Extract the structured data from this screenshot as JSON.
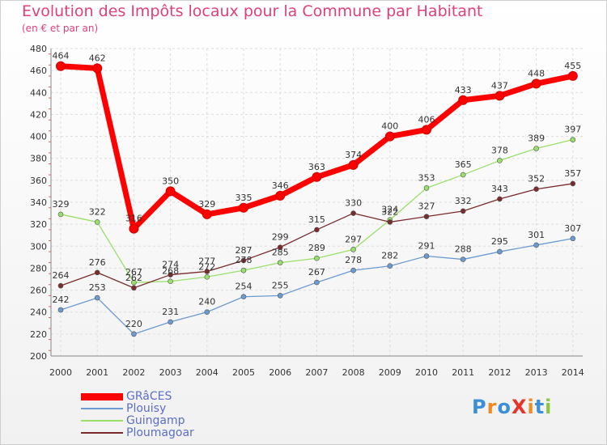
{
  "title": "Evolution des Impôts locaux pour la Commune par Habitant",
  "subtitle": "(en € et par an)",
  "logo_text": "ProXiti",
  "chart_data": {
    "type": "line",
    "title": "Evolution des Impôts locaux pour la Commune par Habitant",
    "subtitle": "(en € et par an)",
    "xlabel": "",
    "ylabel": "",
    "ylim": [
      200,
      480
    ],
    "ytick_step": 20,
    "grid": true,
    "legend_position": "bottom-left",
    "x": [
      2000,
      2001,
      2002,
      2003,
      2004,
      2005,
      2006,
      2007,
      2008,
      2009,
      2010,
      2011,
      2012,
      2013,
      2014
    ],
    "series": [
      {
        "name": "GRâCES",
        "color": "#ff0000",
        "values": [
          464,
          462,
          316,
          350,
          329,
          335,
          346,
          363,
          374,
          400,
          406,
          433,
          437,
          448,
          455
        ]
      },
      {
        "name": "Plouisy",
        "color": "#6b9bd2",
        "values": [
          242,
          253,
          220,
          231,
          240,
          254,
          255,
          267,
          278,
          282,
          291,
          288,
          295,
          301,
          307
        ]
      },
      {
        "name": "Guingamp",
        "color": "#99e06a",
        "values": [
          329,
          322,
          267,
          268,
          272,
          278,
          285,
          289,
          297,
          324,
          353,
          365,
          378,
          389,
          397
        ]
      },
      {
        "name": "Ploumagoar",
        "color": "#7a2b2b",
        "values": [
          264,
          276,
          262,
          274,
          277,
          287,
          299,
          315,
          330,
          322,
          327,
          332,
          343,
          352,
          357
        ]
      }
    ]
  }
}
